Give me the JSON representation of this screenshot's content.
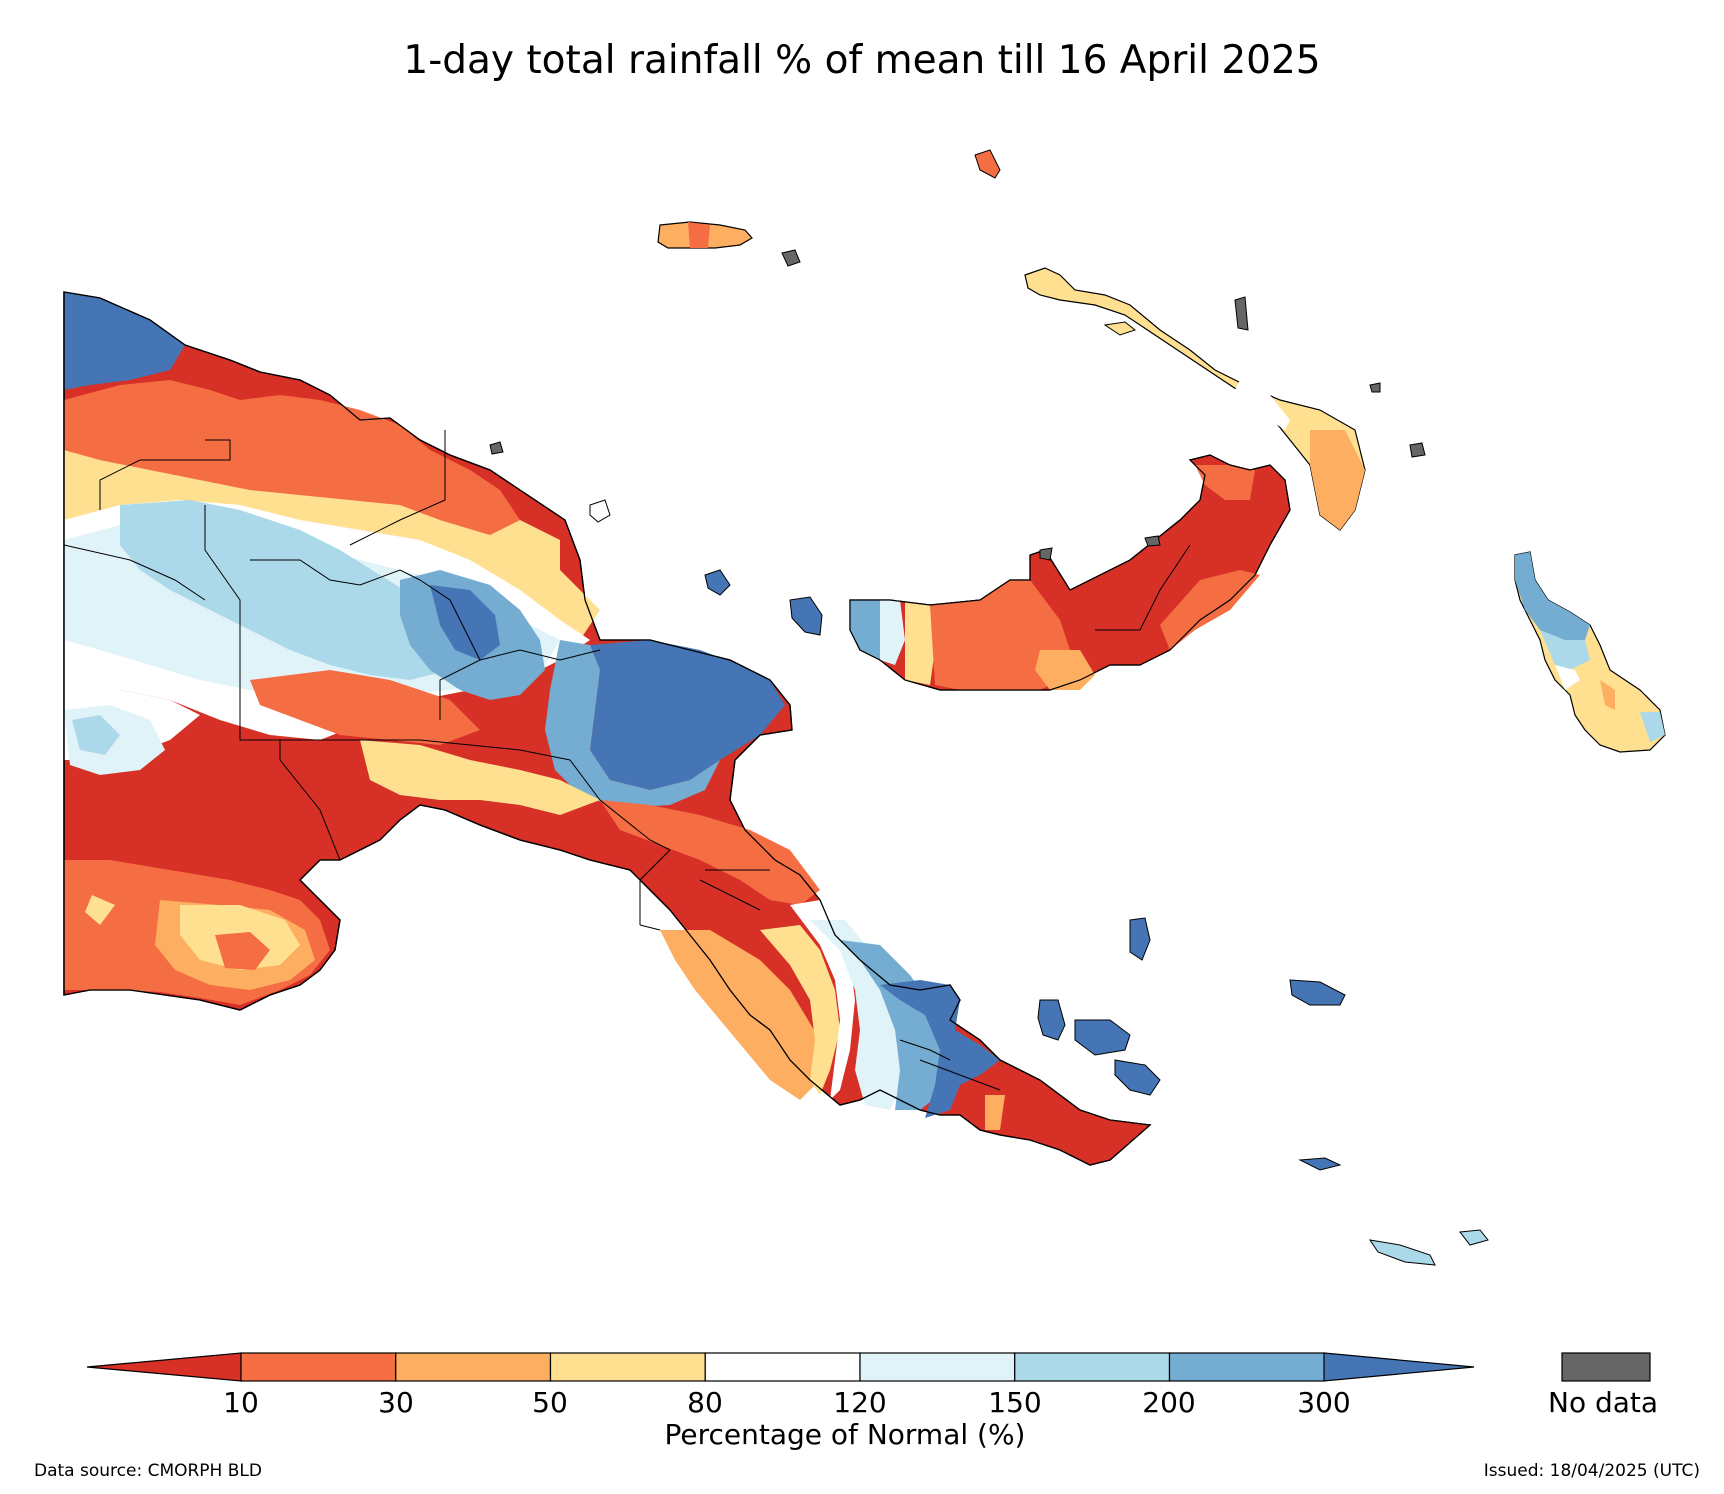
{
  "title": "1-day total rainfall % of mean till 16 April 2025",
  "colorbar": {
    "label": "Percentage of Normal (%)",
    "ticks": [
      "10",
      "30",
      "50",
      "80",
      "120",
      "150",
      "200",
      "300"
    ],
    "colors": {
      "below_10": "#d73027",
      "10_30": "#f46d43",
      "30_50": "#fdae61",
      "50_80": "#fee090",
      "80_120": "#ffffff",
      "120_150": "#e0f3f8",
      "150_200": "#abd9e9",
      "200_300": "#74add1",
      "above_300": "#4575b4"
    },
    "extend": "both"
  },
  "no_data": {
    "label": "No data",
    "color": "#666666"
  },
  "footer": {
    "source": "Data source: CMORPH BLD",
    "issued": "Issued: 18/04/2025 (UTC)"
  },
  "map": {
    "region": "Papua New Guinea",
    "coastline_color": "#000000",
    "province_border_color": "#000000"
  }
}
